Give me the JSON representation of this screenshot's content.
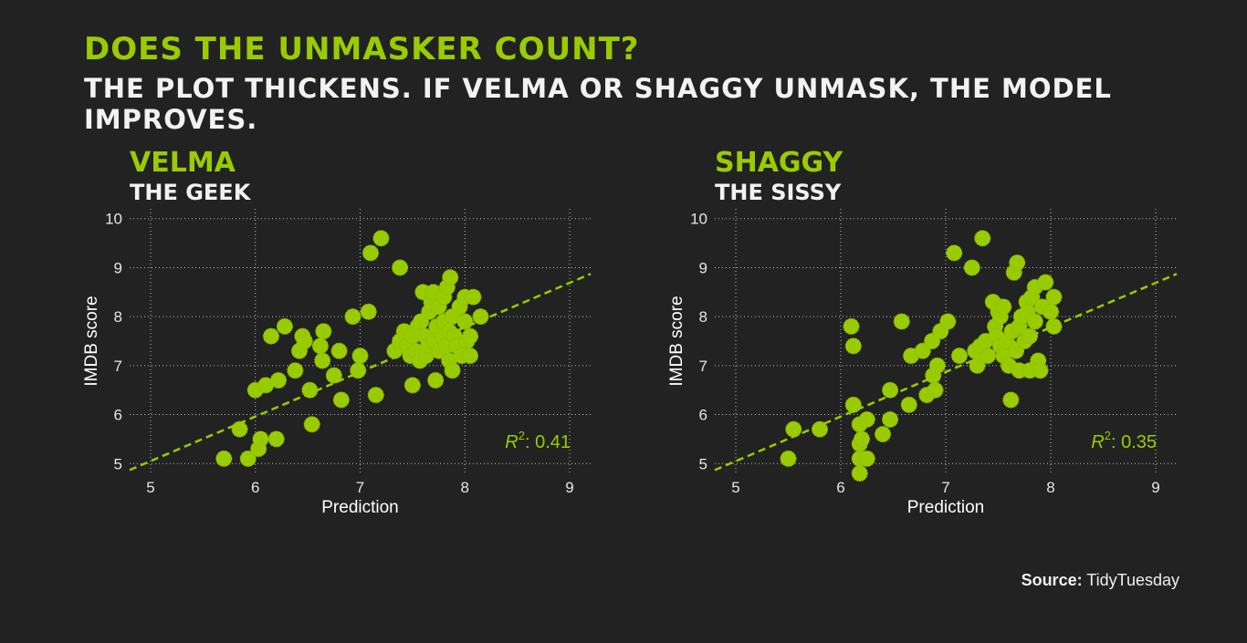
{
  "title": "DOES THE UNMASKER COUNT?",
  "subtitle": "THE PLOT THICKENS. IF VELMA OR SHAGGY UNMASK, THE MODEL IMPROVES.",
  "source": {
    "label": "Source:",
    "value": "TidyTuesday"
  },
  "colors": {
    "background": "#222222",
    "accent": "#99cc00",
    "point": "#99cc00",
    "text": "#ffffff"
  },
  "chart_data": [
    {
      "type": "scatter",
      "title": "VELMA",
      "subtitle": "THE GEEK",
      "xlabel": "Prediction",
      "ylabel": "IMDB score",
      "xlim": [
        4.8,
        9.2
      ],
      "ylim": [
        4.8,
        10.2
      ],
      "xticks": [
        "5",
        "6",
        "7",
        "8",
        "9"
      ],
      "yticks": [
        "5",
        "6",
        "7",
        "8",
        "9",
        "10"
      ],
      "grid": true,
      "r2_label": "R",
      "r2_value": ": 0.41",
      "trend_line": {
        "slope": 0.91,
        "intercept": 0.5
      },
      "points": [
        [
          5.7,
          5.1
        ],
        [
          5.85,
          5.7
        ],
        [
          5.93,
          5.1
        ],
        [
          6.0,
          6.5
        ],
        [
          6.03,
          5.3
        ],
        [
          6.05,
          5.5
        ],
        [
          6.1,
          6.6
        ],
        [
          6.15,
          7.6
        ],
        [
          6.2,
          5.5
        ],
        [
          6.22,
          6.7
        ],
        [
          6.28,
          7.8
        ],
        [
          6.38,
          6.9
        ],
        [
          6.42,
          7.3
        ],
        [
          6.45,
          7.6
        ],
        [
          6.47,
          7.5
        ],
        [
          6.52,
          6.5
        ],
        [
          6.54,
          5.8
        ],
        [
          6.62,
          7.4
        ],
        [
          6.64,
          7.1
        ],
        [
          6.65,
          7.7
        ],
        [
          6.75,
          6.8
        ],
        [
          6.8,
          7.3
        ],
        [
          6.82,
          6.3
        ],
        [
          6.93,
          8.0
        ],
        [
          6.98,
          6.9
        ],
        [
          7.0,
          7.2
        ],
        [
          7.08,
          8.1
        ],
        [
          7.1,
          9.3
        ],
        [
          7.15,
          6.4
        ],
        [
          7.2,
          9.6
        ],
        [
          7.33,
          7.3
        ],
        [
          7.38,
          7.5
        ],
        [
          7.38,
          9.0
        ],
        [
          7.42,
          7.7
        ],
        [
          7.45,
          7.4
        ],
        [
          7.48,
          7.2
        ],
        [
          7.5,
          7.6
        ],
        [
          7.5,
          6.6
        ],
        [
          7.53,
          7.3
        ],
        [
          7.55,
          7.8
        ],
        [
          7.57,
          7.1
        ],
        [
          7.58,
          7.9
        ],
        [
          7.6,
          8.5
        ],
        [
          7.62,
          7.6
        ],
        [
          7.63,
          7.2
        ],
        [
          7.65,
          7.4
        ],
        [
          7.66,
          8.1
        ],
        [
          7.68,
          8.3
        ],
        [
          7.7,
          7.5
        ],
        [
          7.7,
          8.5
        ],
        [
          7.72,
          6.7
        ],
        [
          7.73,
          7.8
        ],
        [
          7.75,
          8.2
        ],
        [
          7.75,
          7.3
        ],
        [
          7.78,
          7.6
        ],
        [
          7.8,
          8.4
        ],
        [
          7.8,
          7.9
        ],
        [
          7.82,
          7.4
        ],
        [
          7.83,
          8.6
        ],
        [
          7.85,
          7.7
        ],
        [
          7.85,
          7.1
        ],
        [
          7.86,
          8.8
        ],
        [
          7.88,
          8.0
        ],
        [
          7.88,
          6.9
        ],
        [
          7.9,
          7.6
        ],
        [
          7.92,
          7.4
        ],
        [
          7.95,
          8.2
        ],
        [
          7.97,
          7.2
        ],
        [
          8.0,
          8.4
        ],
        [
          8.0,
          7.9
        ],
        [
          8.02,
          7.5
        ],
        [
          8.05,
          7.2
        ],
        [
          8.05,
          7.6
        ],
        [
          8.08,
          8.4
        ],
        [
          8.15,
          8.0
        ]
      ]
    },
    {
      "type": "scatter",
      "title": "SHAGGY",
      "subtitle": "THE SISSY",
      "xlabel": "Prediction",
      "ylabel": "IMDB score",
      "xlim": [
        4.8,
        9.2
      ],
      "ylim": [
        4.8,
        10.2
      ],
      "xticks": [
        "5",
        "6",
        "7",
        "8",
        "9"
      ],
      "yticks": [
        "5",
        "6",
        "7",
        "8",
        "9",
        "10"
      ],
      "grid": true,
      "r2_label": "R",
      "r2_value": ": 0.35",
      "trend_line": {
        "slope": 0.91,
        "intercept": 0.5
      },
      "points": [
        [
          5.5,
          5.1
        ],
        [
          5.55,
          5.7
        ],
        [
          5.8,
          5.7
        ],
        [
          6.1,
          7.8
        ],
        [
          6.12,
          7.4
        ],
        [
          6.12,
          6.2
        ],
        [
          6.18,
          5.8
        ],
        [
          6.18,
          5.4
        ],
        [
          6.18,
          5.1
        ],
        [
          6.18,
          4.8
        ],
        [
          6.2,
          5.5
        ],
        [
          6.25,
          5.9
        ],
        [
          6.25,
          5.1
        ],
        [
          6.4,
          5.6
        ],
        [
          6.47,
          5.9
        ],
        [
          6.47,
          6.5
        ],
        [
          6.58,
          7.9
        ],
        [
          6.65,
          6.2
        ],
        [
          6.67,
          7.2
        ],
        [
          6.78,
          7.3
        ],
        [
          6.82,
          6.4
        ],
        [
          6.87,
          7.5
        ],
        [
          6.88,
          6.8
        ],
        [
          6.9,
          6.5
        ],
        [
          6.92,
          7.0
        ],
        [
          6.95,
          7.7
        ],
        [
          7.02,
          7.9
        ],
        [
          7.08,
          9.3
        ],
        [
          7.13,
          7.2
        ],
        [
          7.25,
          9.0
        ],
        [
          7.28,
          7.3
        ],
        [
          7.3,
          7.0
        ],
        [
          7.33,
          7.4
        ],
        [
          7.35,
          9.6
        ],
        [
          7.38,
          7.5
        ],
        [
          7.4,
          7.2
        ],
        [
          7.45,
          8.3
        ],
        [
          7.47,
          7.8
        ],
        [
          7.48,
          7.6
        ],
        [
          7.5,
          8.1
        ],
        [
          7.52,
          7.4
        ],
        [
          7.52,
          8.0
        ],
        [
          7.55,
          7.2
        ],
        [
          7.55,
          8.2
        ],
        [
          7.58,
          7.5
        ],
        [
          7.6,
          7.0
        ],
        [
          7.62,
          6.3
        ],
        [
          7.63,
          7.7
        ],
        [
          7.65,
          8.9
        ],
        [
          7.67,
          7.3
        ],
        [
          7.68,
          9.1
        ],
        [
          7.7,
          7.8
        ],
        [
          7.7,
          6.9
        ],
        [
          7.72,
          8.0
        ],
        [
          7.75,
          7.5
        ],
        [
          7.77,
          8.3
        ],
        [
          7.78,
          8.1
        ],
        [
          7.8,
          6.9
        ],
        [
          7.8,
          7.6
        ],
        [
          7.82,
          8.4
        ],
        [
          7.85,
          7.9
        ],
        [
          7.85,
          8.6
        ],
        [
          7.88,
          7.1
        ],
        [
          7.9,
          6.9
        ],
        [
          7.92,
          8.2
        ],
        [
          7.95,
          8.7
        ],
        [
          8.0,
          8.1
        ],
        [
          8.03,
          8.4
        ],
        [
          8.03,
          7.8
        ]
      ]
    }
  ]
}
